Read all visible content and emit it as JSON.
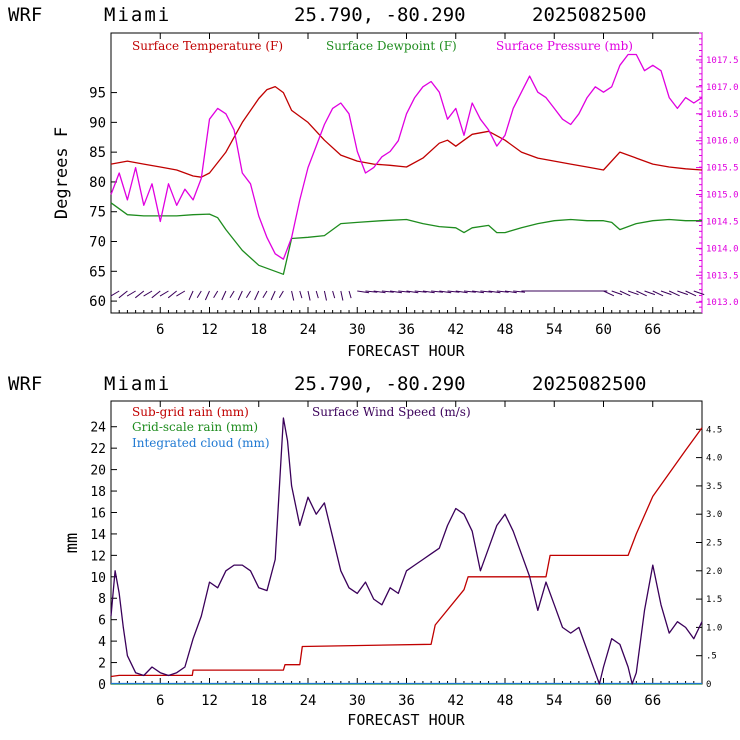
{
  "colors": {
    "temperature": "#c00000",
    "dewpoint": "#1e8c1e",
    "pressure": "#e000e0",
    "subgrid": "#c00000",
    "gridscale": "#1e8c1e",
    "cloud": "#1e78d2",
    "wind": "#3a005a",
    "right_axis_top": "#e000e0"
  },
  "chart_data": [
    {
      "type": "line",
      "header": {
        "model": "WRF",
        "location": "Miami",
        "coords": "25.790, -80.290",
        "date": "2025082500"
      },
      "xlabel": "FORECAST HOUR",
      "ylabel": "Degrees F",
      "xlim": [
        0,
        72
      ],
      "ylim": [
        58,
        105
      ],
      "y2lim": [
        1012.8,
        1018.0
      ],
      "x_ticks": [
        "6",
        "12",
        "18",
        "24",
        "30",
        "36",
        "42",
        "48",
        "54",
        "60",
        "66"
      ],
      "y_ticks": [
        "60",
        "65",
        "70",
        "75",
        "80",
        "85",
        "90",
        "95"
      ],
      "y2_ticks": [
        "1013.0",
        "1013.5",
        "1014.0",
        "1014.5",
        "1015.0",
        "1015.5",
        "1016.0",
        "1016.5",
        "1017.0",
        "1017.5"
      ],
      "wind_barbs": "row of wind barbs along bottom of panel",
      "series": [
        {
          "name": "Surface Temperature (F)",
          "axis": "left",
          "x": [
            0,
            2,
            4,
            6,
            8,
            10,
            11,
            12,
            14,
            16,
            18,
            19,
            20,
            21,
            22,
            24,
            26,
            28,
            30,
            32,
            34,
            36,
            38,
            40,
            41,
            42,
            43,
            44,
            46,
            48,
            50,
            52,
            54,
            56,
            58,
            60,
            62,
            64,
            66,
            68,
            70,
            72
          ],
          "y": [
            83,
            83.5,
            83,
            82.5,
            82,
            81,
            80.8,
            81.5,
            85,
            90,
            94,
            95.5,
            96,
            95,
            92,
            90,
            87,
            84.5,
            83.5,
            83,
            82.8,
            82.5,
            84,
            86.5,
            87,
            86,
            87,
            88,
            88.5,
            87,
            85,
            84,
            83.5,
            83,
            82.5,
            82,
            85,
            84,
            83,
            82.5,
            82.2,
            82
          ]
        },
        {
          "name": "Surface Dewpoint (F)",
          "axis": "left",
          "x": [
            0,
            2,
            4,
            6,
            8,
            10,
            12,
            13,
            14,
            16,
            18,
            20,
            21,
            22,
            24,
            26,
            28,
            30,
            33,
            36,
            38,
            40,
            42,
            43,
            44,
            46,
            47,
            48,
            50,
            52,
            54,
            56,
            58,
            60,
            61,
            62,
            64,
            66,
            68,
            70,
            72
          ],
          "y": [
            76.5,
            74.5,
            74.3,
            74.3,
            74.3,
            74.5,
            74.6,
            74,
            72,
            68.5,
            66,
            65,
            64.5,
            70.5,
            70.7,
            71,
            73,
            73.2,
            73.5,
            73.7,
            73,
            72.5,
            72.3,
            71.5,
            72.3,
            72.7,
            71.5,
            71.5,
            72.3,
            73,
            73.5,
            73.7,
            73.5,
            73.5,
            73.2,
            72,
            73,
            73.5,
            73.7,
            73.5,
            73.5
          ]
        },
        {
          "name": "Surface Pressure (mb)",
          "axis": "right",
          "x": [
            0,
            1,
            2,
            3,
            4,
            5,
            6,
            7,
            8,
            9,
            10,
            11,
            12,
            13,
            14,
            15,
            16,
            17,
            18,
            19,
            20,
            21,
            22,
            23,
            24,
            25,
            26,
            27,
            28,
            29,
            30,
            31,
            32,
            33,
            34,
            35,
            36,
            37,
            38,
            39,
            40,
            41,
            42,
            43,
            44,
            45,
            46,
            47,
            48,
            49,
            50,
            51,
            52,
            53,
            54,
            55,
            56,
            57,
            58,
            59,
            60,
            61,
            62,
            63,
            64,
            65,
            66,
            67,
            68,
            69,
            70,
            71,
            72
          ],
          "y": [
            1015.0,
            1015.4,
            1014.9,
            1015.5,
            1014.8,
            1015.2,
            1014.5,
            1015.2,
            1014.8,
            1015.1,
            1014.9,
            1015.3,
            1016.4,
            1016.6,
            1016.5,
            1016.2,
            1015.4,
            1015.2,
            1014.6,
            1014.2,
            1013.9,
            1013.8,
            1014.2,
            1014.9,
            1015.5,
            1015.9,
            1016.3,
            1016.6,
            1016.7,
            1016.5,
            1015.8,
            1015.4,
            1015.5,
            1015.7,
            1015.8,
            1016.0,
            1016.5,
            1016.8,
            1017.0,
            1017.1,
            1016.9,
            1016.4,
            1016.6,
            1016.1,
            1016.7,
            1016.4,
            1016.2,
            1015.9,
            1016.1,
            1016.6,
            1016.9,
            1017.2,
            1016.9,
            1016.8,
            1016.6,
            1016.4,
            1016.3,
            1016.5,
            1016.8,
            1017.0,
            1016.9,
            1017.0,
            1017.4,
            1017.6,
            1017.6,
            1017.3,
            1017.4,
            1017.3,
            1016.8,
            1016.6,
            1016.8,
            1016.7,
            1016.8
          ]
        }
      ]
    },
    {
      "type": "line",
      "header": {
        "model": "WRF",
        "location": "Miami",
        "coords": "25.790, -80.290",
        "date": "2025082500"
      },
      "xlabel": "FORECAST HOUR",
      "ylabel": "mm",
      "xlim": [
        0,
        72
      ],
      "ylim": [
        0,
        26.4
      ],
      "y2lim": [
        0,
        5.0
      ],
      "x_ticks": [
        "6",
        "12",
        "18",
        "24",
        "30",
        "36",
        "42",
        "48",
        "54",
        "60",
        "66"
      ],
      "y_ticks": [
        "0",
        "2",
        "4",
        "6",
        "8",
        "10",
        "12",
        "14",
        "16",
        "18",
        "20",
        "22",
        "24"
      ],
      "y2_ticks": [
        "0",
        ".5",
        "1.0",
        "1.5",
        "2.0",
        "2.5",
        "3.0",
        "3.5",
        "4.0",
        "4.5"
      ],
      "series": [
        {
          "name": "Sub-grid rain (mm)",
          "axis": "left",
          "x": [
            0,
            1,
            9.9,
            10,
            21,
            21.2,
            23,
            23.3,
            39,
            39.5,
            43,
            43.5,
            53,
            53.5,
            63,
            64,
            66,
            70,
            72
          ],
          "y": [
            0.7,
            0.8,
            0.8,
            1.3,
            1.3,
            1.8,
            1.8,
            3.5,
            3.7,
            5.5,
            8.8,
            10.0,
            10.0,
            12.0,
            12.0,
            14.0,
            17.5,
            21.8,
            23.9
          ]
        },
        {
          "name": "Grid-scale rain (mm)",
          "axis": "left",
          "x": [
            0,
            72
          ],
          "y": [
            0,
            0
          ]
        },
        {
          "name": "Integrated cloud (mm)",
          "axis": "left",
          "x": [
            0,
            72
          ],
          "y": [
            0.05,
            0.05
          ]
        },
        {
          "name": "Surface Wind Speed (m/s)",
          "axis": "right",
          "x": [
            0,
            0.5,
            1,
            1.5,
            2,
            3,
            4,
            5,
            6,
            7,
            8,
            9,
            10,
            11,
            12,
            13,
            14,
            15,
            16,
            17,
            18,
            19,
            20,
            21,
            21.5,
            22,
            23,
            24,
            25,
            26,
            27,
            28,
            29,
            30,
            31,
            32,
            33,
            34,
            35,
            36,
            37,
            38,
            39,
            40,
            41,
            42,
            43,
            44,
            45,
            46,
            47,
            48,
            49,
            50,
            51,
            52,
            53,
            54,
            55,
            56,
            57,
            58,
            59,
            59.5,
            60,
            61,
            62,
            63,
            63.5,
            64,
            65,
            66,
            67,
            68,
            69,
            70,
            71,
            72
          ],
          "y": [
            1.2,
            2.0,
            1.6,
            1.0,
            0.5,
            0.2,
            0.15,
            0.3,
            0.2,
            0.15,
            0.2,
            0.3,
            0.8,
            1.2,
            1.8,
            1.7,
            2.0,
            2.1,
            2.1,
            2.0,
            1.7,
            1.65,
            2.2,
            4.7,
            4.3,
            3.5,
            2.8,
            3.3,
            3.0,
            3.2,
            2.6,
            2.0,
            1.7,
            1.6,
            1.8,
            1.5,
            1.4,
            1.7,
            1.6,
            2.0,
            2.1,
            2.2,
            2.3,
            2.4,
            2.8,
            3.1,
            3.0,
            2.7,
            2.0,
            2.4,
            2.8,
            3.0,
            2.7,
            2.3,
            1.9,
            1.3,
            1.8,
            1.4,
            1.0,
            0.9,
            1.0,
            0.6,
            0.2,
            0.0,
            0.3,
            0.8,
            0.7,
            0.3,
            0.0,
            0.2,
            1.3,
            2.1,
            1.4,
            0.9,
            1.1,
            1.0,
            0.8,
            1.1
          ]
        }
      ]
    }
  ]
}
